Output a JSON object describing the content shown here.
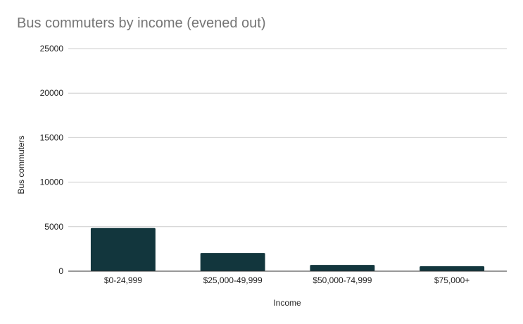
{
  "chart_data": {
    "type": "bar",
    "title": "Bus commuters by income (evened out)",
    "xlabel": "Income",
    "ylabel": "Bus commuters",
    "categories": [
      "$0-24,999",
      "$25,000-49,999",
      "$50,000-74,999",
      "$75,000+"
    ],
    "values": [
      4850,
      2050,
      700,
      550
    ],
    "ylim": [
      0,
      25000
    ],
    "yticks": [
      "0",
      "5000",
      "10000",
      "15000",
      "20000",
      "25000"
    ],
    "grid": true,
    "legend": "none",
    "bar_color": "#12363d",
    "grid_color": "#cccccc",
    "axis_color": "#333333"
  }
}
